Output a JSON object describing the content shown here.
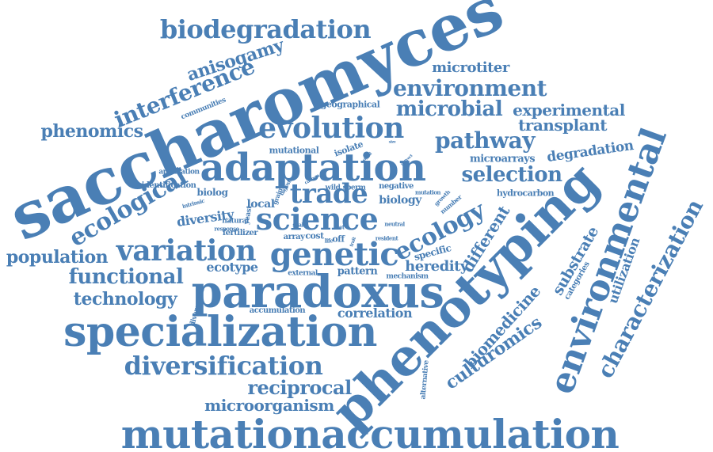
{
  "cloud": {
    "color": "#4a7fb5",
    "words": [
      {
        "text": "saccharomyces"
      },
      {
        "text": "mutationaccumulation"
      },
      {
        "text": "phenotyping"
      },
      {
        "text": "paradoxus"
      },
      {
        "text": "specialization"
      },
      {
        "text": "adaptation"
      },
      {
        "text": "environmental"
      },
      {
        "text": "genetic"
      },
      {
        "text": "science"
      },
      {
        "text": "variation"
      },
      {
        "text": "evolution"
      },
      {
        "text": "trade"
      },
      {
        "text": "ecology"
      },
      {
        "text": "biodegradation"
      },
      {
        "text": "diversification"
      },
      {
        "text": "interference"
      },
      {
        "text": "characterization"
      },
      {
        "text": "ecological"
      },
      {
        "text": "environment"
      },
      {
        "text": "microbial"
      },
      {
        "text": "pathway"
      },
      {
        "text": "selection"
      },
      {
        "text": "functional"
      },
      {
        "text": "population"
      },
      {
        "text": "phenomics"
      },
      {
        "text": "technology"
      },
      {
        "text": "reciprocal"
      },
      {
        "text": "microorganism"
      },
      {
        "text": "anisogamy"
      },
      {
        "text": "biomedicine"
      },
      {
        "text": "culturomics"
      },
      {
        "text": "different"
      },
      {
        "text": "experimental"
      },
      {
        "text": "transplant"
      },
      {
        "text": "microtiter"
      },
      {
        "text": "degradation"
      },
      {
        "text": "substrate"
      },
      {
        "text": "utilization"
      },
      {
        "text": "heredity"
      },
      {
        "text": "ecotype"
      },
      {
        "text": "correlation"
      },
      {
        "text": "diversity"
      },
      {
        "text": "pattern"
      },
      {
        "text": "microarrays"
      },
      {
        "text": "biology"
      },
      {
        "text": "local"
      },
      {
        "text": "biolog"
      },
      {
        "text": "mutational"
      },
      {
        "text": "hydrocarbon"
      },
      {
        "text": "categories"
      },
      {
        "text": "specific"
      },
      {
        "text": "isolate"
      },
      {
        "text": "accumulation"
      },
      {
        "text": "identification"
      },
      {
        "text": "geographical"
      },
      {
        "text": "communities"
      },
      {
        "text": "application"
      },
      {
        "text": "fertilizer"
      },
      {
        "text": "external"
      },
      {
        "text": "mechanism"
      },
      {
        "text": "negative"
      },
      {
        "text": "divergence"
      },
      {
        "text": "alternative"
      },
      {
        "text": "natural"
      },
      {
        "text": "intrinsic"
      },
      {
        "text": "response"
      },
      {
        "text": "array"
      },
      {
        "text": "cost"
      },
      {
        "text": "off"
      },
      {
        "text": "wild"
      },
      {
        "text": "sperm"
      },
      {
        "text": "yeast"
      },
      {
        "text": "grain"
      },
      {
        "text": "digest"
      },
      {
        "text": "mutation"
      },
      {
        "text": "growth"
      },
      {
        "text": "number"
      },
      {
        "text": "neutral"
      },
      {
        "text": "resident"
      },
      {
        "text": "scale"
      },
      {
        "text": "diet"
      },
      {
        "text": "life"
      },
      {
        "text": "size"
      },
      {
        "text": "signal"
      },
      {
        "text": "indirect"
      },
      {
        "text": "carbon"
      },
      {
        "text": "trait"
      }
    ]
  }
}
